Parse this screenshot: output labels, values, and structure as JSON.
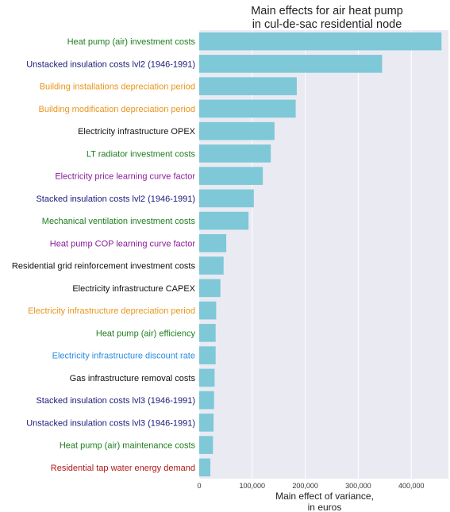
{
  "chart_data": {
    "type": "bar",
    "orientation": "horizontal",
    "title": [
      "Main effects for air heat pump",
      "in cul-de-sac residential node"
    ],
    "xlabel": [
      "Main effect of variance,",
      "in euros"
    ],
    "ylabel": "",
    "xlim": [
      0,
      470000
    ],
    "xticks": [
      0,
      100000,
      200000,
      300000,
      400000
    ],
    "xtick_labels": [
      "0",
      "100,000",
      "200,000",
      "300,000",
      "400,000"
    ],
    "grid": true,
    "legend": "none",
    "bar_color": "#7ec8d8",
    "background_color": "#eaeaf2",
    "categories": [
      "Heat pump (air) investment costs",
      "Unstacked insulation costs lvl2 (1946-1991)",
      "Building installations depreciation period",
      "Building modification depreciation period",
      "Electricity infrastructure OPEX",
      "LT radiator investment costs",
      "Electricity price learning curve factor",
      "Stacked insulation costs lvl2 (1946-1991)",
      "Mechanical ventilation investment costs",
      "Heat pump COP learning curve factor",
      "Residential grid reinforcement investment costs",
      "Electricity infrastructure CAPEX",
      "Electricity infrastructure depreciation period",
      "Heat pump (air) efficiency",
      "Electricity infrastructure discount rate",
      "Gas infrastructure removal costs",
      "Stacked insulation costs lvl3 (1946-1991)",
      "Unstacked insulation costs lvl3 (1946-1991)",
      "Heat pump (air) maintenance costs",
      "Residential tap water energy demand"
    ],
    "values": [
      457000,
      345000,
      184000,
      182000,
      142000,
      135000,
      120000,
      103000,
      93000,
      51000,
      46000,
      40000,
      32000,
      31000,
      31000,
      29000,
      28000,
      27000,
      26000,
      21000
    ],
    "label_colors": [
      "#1e7d1e",
      "#1a1a7a",
      "#e8951c",
      "#e8951c",
      "#111111",
      "#1e7d1e",
      "#8b1c9c",
      "#1a1a7a",
      "#1e7d1e",
      "#8b1c9c",
      "#111111",
      "#111111",
      "#e8951c",
      "#1e7d1e",
      "#2b8be0",
      "#111111",
      "#1a1a7a",
      "#1a1a7a",
      "#1e7d1e",
      "#b01818"
    ]
  }
}
